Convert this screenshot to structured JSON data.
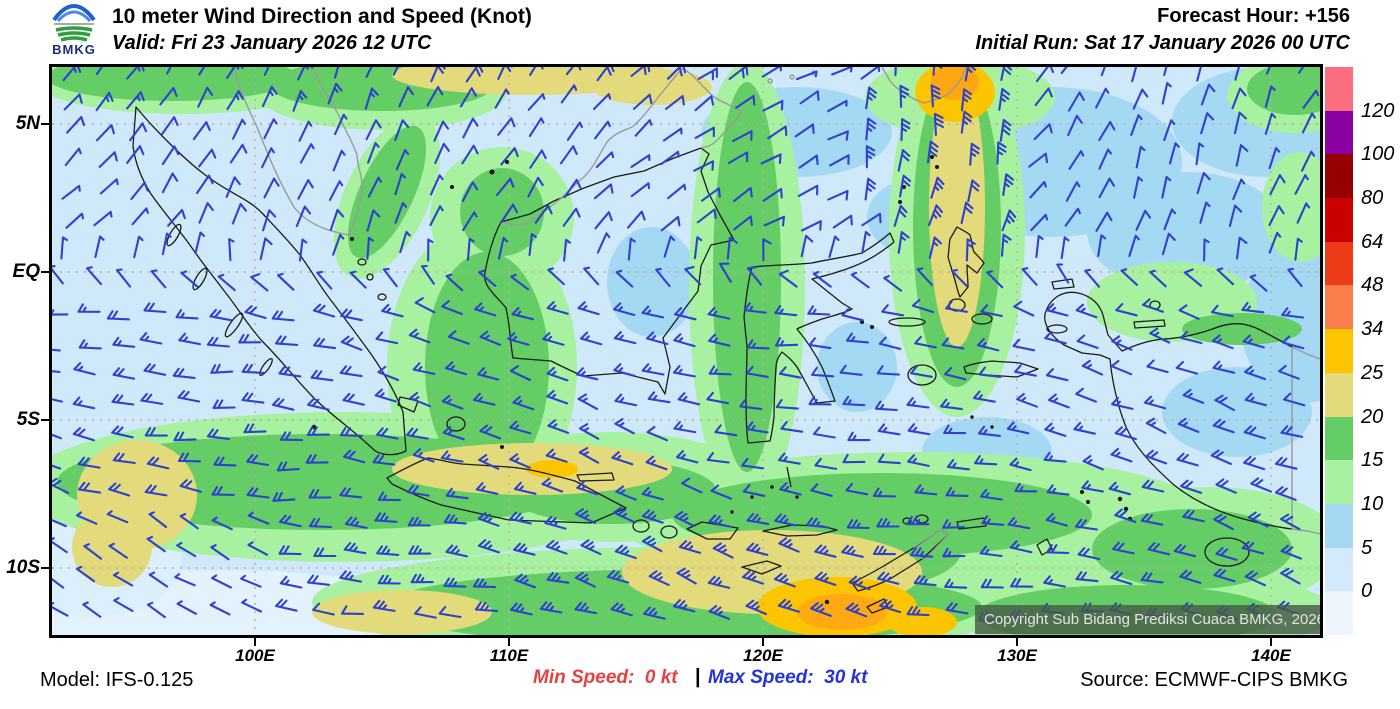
{
  "header": {
    "logo": "BMKG",
    "title": "10 meter Wind Direction and Speed (Knot)",
    "valid": "Valid: Fri 23 January 2026 12 UTC",
    "forecast_hour": "Forecast Hour: +156",
    "initial_run": "Initial Run: Sat 17 January 2026 00 UTC"
  },
  "map": {
    "lat_labels": [
      "5N",
      "EQ",
      "5S",
      "10S"
    ],
    "lon_labels": [
      "100E",
      "110E",
      "120E",
      "130E",
      "140E"
    ],
    "copyright": "Copyright Sub Bidang Prediksi Cuaca BMKG, 2026"
  },
  "legend": {
    "tick_labels": [
      "120",
      "100",
      "80",
      "64",
      "48",
      "34",
      "25",
      "20",
      "15",
      "10",
      "5",
      "0"
    ],
    "segment_colors_top_to_bottom": [
      "#fb6e80",
      "#8a01a2",
      "#970000",
      "#c90200",
      "#ed3a17",
      "#fa7e4c",
      "#fdc500",
      "#e3da7b",
      "#65cd65",
      "#a8f1a0",
      "#a5d9f3",
      "#d2eafc",
      "#eef6fd"
    ]
  },
  "footer": {
    "model": "Model: IFS-0.125",
    "min_speed": "Min Speed:  0 kt",
    "separator": "|",
    "max_speed": "Max Speed:  30 kt",
    "source": "Source: ECMWF-CIPS BMKG"
  },
  "style": {
    "barb_color": "#2e41cf",
    "min_speed_color": "#e84040",
    "max_speed_color": "#2233dd",
    "sea_base_color": "#cfe9fb"
  }
}
